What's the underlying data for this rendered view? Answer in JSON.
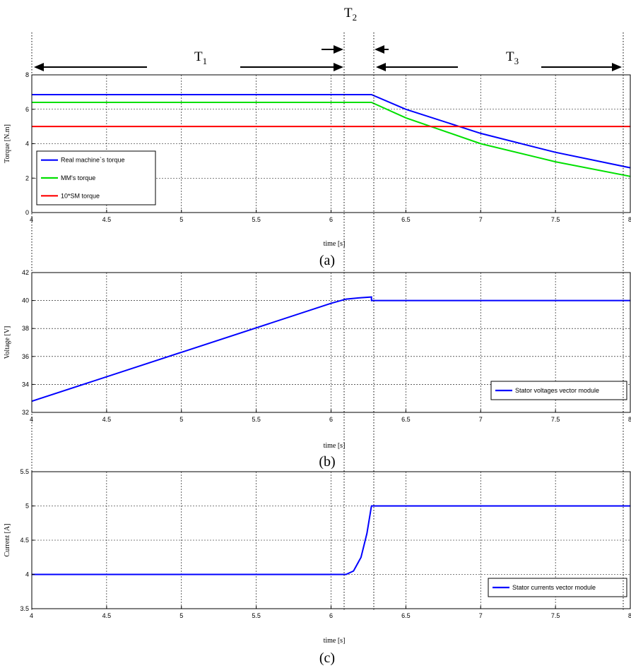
{
  "periods": {
    "t1": {
      "main": "T",
      "sub": "1"
    },
    "t2": {
      "main": "T",
      "sub": "2"
    },
    "t3": {
      "main": "T",
      "sub": "3"
    }
  },
  "chart_data": [
    {
      "type": "line",
      "caption": "(a)",
      "xlabel": "time [s]",
      "ylabel": "Torque [N.m]",
      "xlim": [
        4,
        8
      ],
      "ylim": [
        0,
        8
      ],
      "xticks": [
        4,
        4.5,
        5,
        5.5,
        6,
        6.5,
        7,
        7.5,
        8
      ],
      "xtick_labels": [
        "4",
        "4.5",
        "5",
        "5.5",
        "6",
        "6.5",
        "7",
        "7.5",
        "8"
      ],
      "yticks": [
        0,
        2,
        4,
        6,
        8
      ],
      "ytick_labels": [
        "0",
        "2",
        "4",
        "6",
        "8"
      ],
      "grid": true,
      "legend_position": "middle-left",
      "series": [
        {
          "name": "Real machine`s torque",
          "color": "#0000ff",
          "x": [
            4,
            6.27,
            6.5,
            7,
            7.5,
            8
          ],
          "y": [
            6.85,
            6.85,
            6.0,
            4.6,
            3.5,
            2.6
          ]
        },
        {
          "name": "MM's torque",
          "color": "#00e000",
          "x": [
            4,
            6.27,
            6.5,
            7,
            7.5,
            8
          ],
          "y": [
            6.4,
            6.4,
            5.5,
            4.0,
            2.95,
            2.1
          ]
        },
        {
          "name": "10*SM torque",
          "color": "#ff0000",
          "x": [
            4,
            8
          ],
          "y": [
            5.0,
            5.0
          ]
        }
      ]
    },
    {
      "type": "line",
      "caption": "(b)",
      "xlabel": "time [s]",
      "ylabel": "Voltage [V]",
      "xlim": [
        4,
        8
      ],
      "ylim": [
        32,
        42
      ],
      "xticks": [
        4,
        4.5,
        5,
        5.5,
        6,
        6.5,
        7,
        7.5,
        8
      ],
      "xtick_labels": [
        "4",
        "4.5",
        "5",
        "5.5",
        "6",
        "6.5",
        "7",
        "7.5",
        "8"
      ],
      "yticks": [
        32,
        34,
        36,
        38,
        40,
        42
      ],
      "ytick_labels": [
        "32",
        "34",
        "36",
        "38",
        "40",
        "42"
      ],
      "grid": true,
      "legend_position": "bottom-right",
      "series": [
        {
          "name": "Stator voltages vector module",
          "color": "#0000ff",
          "x": [
            4,
            5,
            6,
            6.1,
            6.2,
            6.27,
            6.27,
            8
          ],
          "y": [
            32.8,
            36.3,
            39.8,
            40.1,
            40.2,
            40.25,
            40.0,
            40.0
          ]
        }
      ]
    },
    {
      "type": "line",
      "caption": "(c)",
      "xlabel": "time [s]",
      "ylabel": "Current [A]",
      "xlim": [
        4,
        8
      ],
      "ylim": [
        3.5,
        5.5
      ],
      "xticks": [
        4,
        4.5,
        5,
        5.5,
        6,
        6.5,
        7,
        7.5,
        8
      ],
      "xtick_labels": [
        "4",
        "4.5",
        "5",
        "5.5",
        "6",
        "6.5",
        "7",
        "7.5",
        "8"
      ],
      "yticks": [
        3.5,
        4,
        4.5,
        5,
        5.5
      ],
      "ytick_labels": [
        "3.5",
        "4",
        "4.5",
        "5",
        "5.5"
      ],
      "grid": true,
      "legend_position": "bottom-right",
      "series": [
        {
          "name": "Stator currents vector module",
          "color": "#0000ff",
          "x": [
            4,
            6.1,
            6.15,
            6.2,
            6.24,
            6.27,
            8
          ],
          "y": [
            4.0,
            4.0,
            4.05,
            4.25,
            4.6,
            5.0,
            5.0
          ]
        }
      ]
    }
  ]
}
